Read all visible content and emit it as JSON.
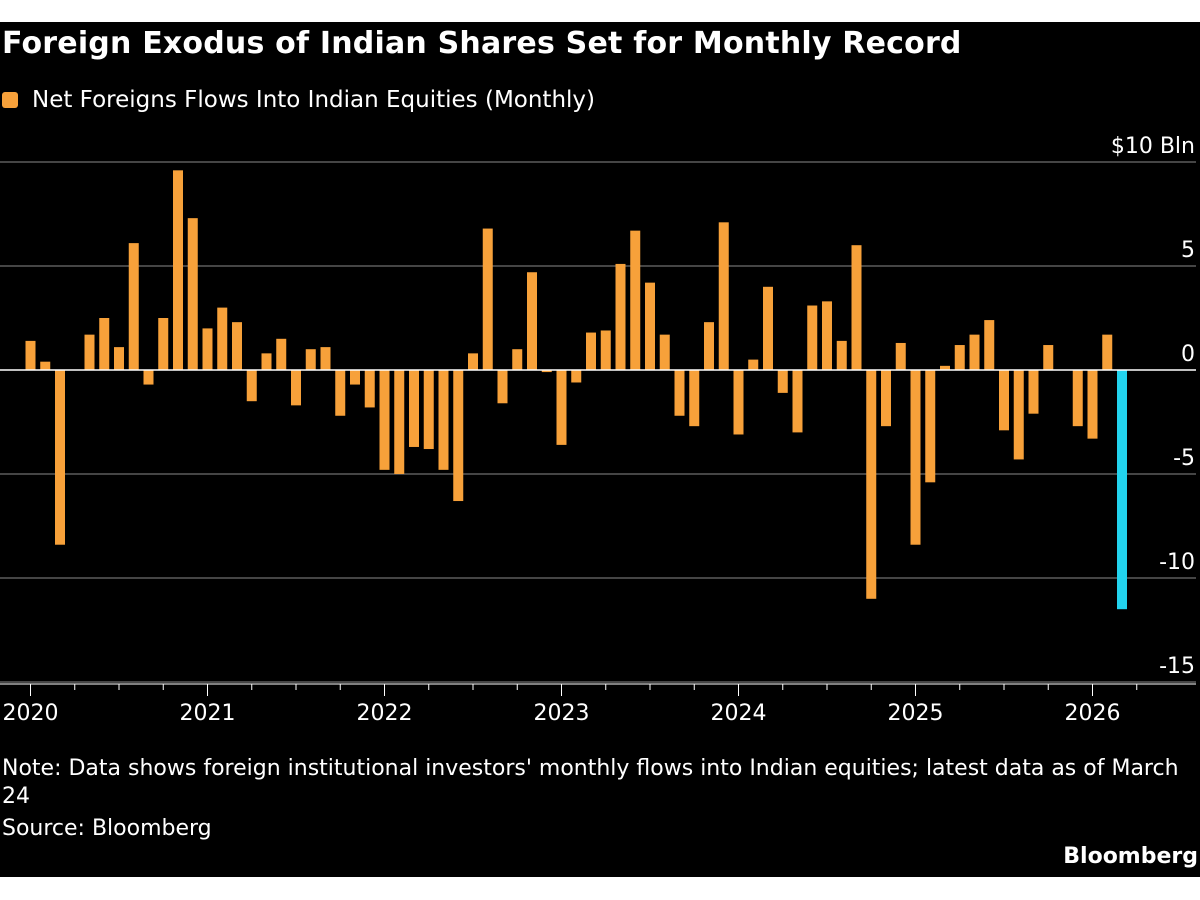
{
  "title": "Foreign Exodus of Indian Shares Set for Monthly Record",
  "legend_label": "Net Foreigns Flows Into Indian Equities (Monthly)",
  "note": "Note: Data shows foreign institutional investors' monthly flows into Indian equities; latest data as of March 24",
  "source": "Source: Bloomberg",
  "brand": "Bloomberg",
  "colors": {
    "background": "#000000",
    "bar": "#f7a13a",
    "highlight": "#22d3ee",
    "grid": "#8a8a8a",
    "text": "#ffffff"
  },
  "chart_data": {
    "type": "bar",
    "series": [
      {
        "name": "Net Foreigns Flows Into Indian Equities (Monthly)",
        "start_month": "2020-01",
        "highlight_last": true,
        "values": [
          1.4,
          0.4,
          -8.4,
          0,
          1.7,
          2.5,
          1.1,
          6.1,
          -0.7,
          2.5,
          9.6,
          7.3,
          2.0,
          3.0,
          2.3,
          -1.5,
          0.8,
          1.5,
          -1.7,
          1.0,
          1.1,
          -2.2,
          -0.7,
          -1.8,
          -4.8,
          -5.0,
          -3.7,
          -3.8,
          -4.8,
          -6.3,
          0.8,
          6.8,
          -1.6,
          1.0,
          4.7,
          -0.1,
          -3.6,
          -0.6,
          1.8,
          1.9,
          5.1,
          6.7,
          4.2,
          1.7,
          -2.2,
          -2.7,
          2.3,
          7.1,
          -3.1,
          0.5,
          4.0,
          -1.1,
          -3.0,
          3.1,
          3.3,
          1.4,
          6.0,
          -11.0,
          -2.7,
          1.3,
          -8.4,
          -5.4,
          0.2,
          1.2,
          1.7,
          2.4,
          -2.9,
          -4.3,
          -2.1,
          1.2,
          0.0,
          -2.7,
          -3.3,
          1.7,
          -11.5
        ]
      }
    ],
    "x_tick_labels": [
      "2020",
      "2021",
      "2022",
      "2023",
      "2024",
      "2025",
      "2026"
    ],
    "y_tick_labels": [
      "$10 Bln",
      "5",
      "0",
      "-5",
      "-10",
      "-15"
    ],
    "y_ticks": [
      10,
      5,
      0,
      -5,
      -10,
      -15
    ],
    "ylim": [
      -15,
      10
    ],
    "grid": "horizontal",
    "y_axis_position": "right"
  }
}
